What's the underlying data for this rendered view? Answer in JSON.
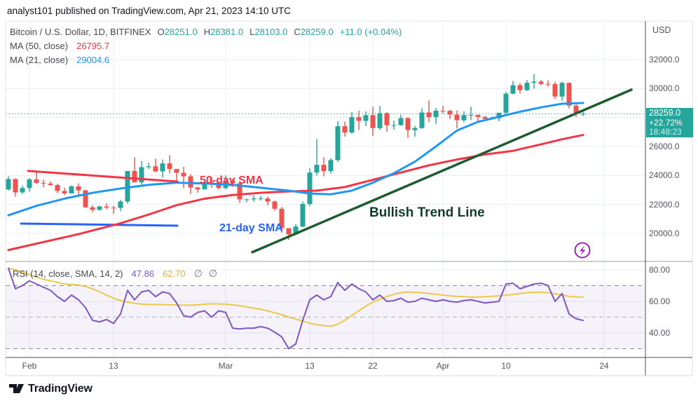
{
  "header": {
    "watermark": "analyst101 published on TradingView.com, Apr 21, 2023 14:10 UTC"
  },
  "legend": {
    "symbol": "Bitcoin / U.S. Dollar, 1D, BITFINEX",
    "ohlc": [
      {
        "label": "O",
        "value": "28251.0"
      },
      {
        "label": "H",
        "value": "28381.0"
      },
      {
        "label": "L",
        "value": "28103.0"
      },
      {
        "label": "C",
        "value": "28259.0"
      }
    ],
    "change": "+11.0 (+0.04%)",
    "ma50": {
      "label": "MA (50, close)",
      "value": "26795.7"
    },
    "ma21": {
      "label": "MA (21, close)",
      "value": "29004.6"
    }
  },
  "annotations": {
    "sma50": "50-day SMA",
    "sma21": "21-day SMA",
    "trend": "Bullish Trend Line"
  },
  "price_axis": {
    "unit": "USD",
    "ticks": [
      {
        "label": "32000.0",
        "value": 32000
      },
      {
        "label": "30000.0",
        "value": 30000
      },
      {
        "label": "26000.0",
        "value": 26000
      },
      {
        "label": "24000.0",
        "value": 24000
      },
      {
        "label": "22000.0",
        "value": 22000
      },
      {
        "label": "20000.0",
        "value": 20000
      }
    ],
    "badge": {
      "price": "28259.0",
      "change": "+22.72%",
      "countdown": "18:48:23"
    }
  },
  "time_axis": {
    "labels": [
      {
        "text": "Feb",
        "day": 3
      },
      {
        "text": "13",
        "day": 15
      },
      {
        "text": "Mar",
        "day": 31
      },
      {
        "text": "13",
        "day": 43
      },
      {
        "text": "22",
        "day": 52
      },
      {
        "text": "Apr",
        "day": 62
      },
      {
        "text": "10",
        "day": 71
      },
      {
        "text": "24",
        "day": 85
      }
    ]
  },
  "rsi_panel": {
    "legend": "RSI (14, close, SMA, 14, 2)",
    "value": "47.86",
    "sma_value": "62.70",
    "empty1": "∅",
    "empty2": "∅",
    "ticks": [
      {
        "label": "80.00",
        "value": 80
      },
      {
        "label": "60.00",
        "value": 60
      },
      {
        "label": "40.00",
        "value": 40
      }
    ]
  },
  "logo": {
    "text": "TradingView"
  },
  "colors": {
    "candle_up": "#26a69a",
    "candle_down": "#ef5350",
    "ma50": "#f23645",
    "ma21": "#2196f3",
    "support": "#2962ff",
    "resistance": "#f23645",
    "trend": "#1d5c2f",
    "rsi": "#7e57c2",
    "rsi_sma": "#ecc94a",
    "grid": "#e7ecf4",
    "badge_bg": "#26a69a",
    "flash": "#9c27b0"
  },
  "chart_data": {
    "type": "candlestick",
    "title": "Bitcoin / U.S. Dollar",
    "interval": "1D",
    "exchange": "BITFINEX",
    "start_date": "2023-01-29",
    "end_date": "2023-04-21",
    "current_price": 28259,
    "price_gridlines": [
      32000,
      30000,
      28000,
      26000,
      24000,
      22000,
      20000
    ],
    "candles": [
      [
        23030,
        23950,
        22960,
        23750
      ],
      [
        23750,
        23800,
        22530,
        22830
      ],
      [
        22830,
        23290,
        22720,
        23130
      ],
      [
        23130,
        23810,
        22880,
        23730
      ],
      [
        23730,
        24250,
        23430,
        23490
      ],
      [
        23490,
        23710,
        23180,
        23440
      ],
      [
        23440,
        23600,
        23290,
        23340
      ],
      [
        23340,
        23430,
        22770,
        22930
      ],
      [
        22930,
        23160,
        22630,
        22760
      ],
      [
        22760,
        23320,
        22760,
        23250
      ],
      [
        23250,
        23450,
        22670,
        22970
      ],
      [
        22970,
        23010,
        21750,
        21800
      ],
      [
        21800,
        21940,
        21450,
        21630
      ],
      [
        21630,
        21900,
        21570,
        21860
      ],
      [
        21860,
        22080,
        21660,
        21780
      ],
      [
        21780,
        21900,
        21350,
        21760
      ],
      [
        21760,
        22320,
        21530,
        22200
      ],
      [
        22200,
        24310,
        22060,
        24310
      ],
      [
        24310,
        25250,
        23560,
        23520
      ],
      [
        23520,
        24990,
        23370,
        24570
      ],
      [
        24570,
        24870,
        24450,
        24630
      ],
      [
        24630,
        25160,
        24220,
        24280
      ],
      [
        24280,
        25100,
        23850,
        24830
      ],
      [
        24830,
        25400,
        24150,
        24450
      ],
      [
        24450,
        24460,
        23580,
        24180
      ],
      [
        24180,
        24600,
        23120,
        23940
      ],
      [
        23940,
        24100,
        22720,
        23170
      ],
      [
        23170,
        23220,
        22800,
        23040
      ],
      [
        23040,
        23680,
        23030,
        23550
      ],
      [
        23550,
        23900,
        23150,
        23500
      ],
      [
        23500,
        23600,
        23020,
        23130
      ],
      [
        23130,
        24000,
        23020,
        23640
      ],
      [
        23640,
        23790,
        23190,
        23460
      ],
      [
        23460,
        23480,
        22100,
        22350
      ],
      [
        22350,
        22410,
        22150,
        22350
      ],
      [
        22350,
        22640,
        22190,
        22410
      ],
      [
        22410,
        22600,
        22260,
        22410
      ],
      [
        22410,
        22550,
        21930,
        22200
      ],
      [
        22200,
        22270,
        21560,
        21700
      ],
      [
        21700,
        21830,
        20050,
        20360
      ],
      [
        20360,
        20370,
        19550,
        19930
      ],
      [
        19930,
        20630,
        19880,
        20470
      ],
      [
        20470,
        22200,
        20430,
        22030
      ],
      [
        22030,
        24500,
        21880,
        24200
      ],
      [
        24200,
        26500,
        24000,
        24730
      ],
      [
        24730,
        25270,
        23940,
        24300
      ],
      [
        24300,
        25190,
        24130,
        25060
      ],
      [
        25060,
        27750,
        24930,
        27400
      ],
      [
        27400,
        27720,
        26680,
        26960
      ],
      [
        26960,
        28380,
        26880,
        28030
      ],
      [
        28030,
        28470,
        27140,
        27770
      ],
      [
        27770,
        28420,
        27400,
        28160
      ],
      [
        28160,
        28750,
        26720,
        27270
      ],
      [
        27270,
        28800,
        27130,
        28300
      ],
      [
        28300,
        28370,
        27020,
        27460
      ],
      [
        27460,
        27780,
        27160,
        27470
      ],
      [
        27470,
        28190,
        27430,
        27960
      ],
      [
        27960,
        28020,
        26590,
        27130
      ],
      [
        27130,
        27430,
        26670,
        27270
      ],
      [
        27270,
        28630,
        27230,
        28350
      ],
      [
        28350,
        29180,
        27680,
        28030
      ],
      [
        28030,
        28650,
        27560,
        28470
      ],
      [
        28470,
        28810,
        28280,
        28460
      ],
      [
        28460,
        28540,
        27880,
        28200
      ],
      [
        28200,
        28490,
        27250,
        27810
      ],
      [
        27810,
        28430,
        27670,
        28170
      ],
      [
        28170,
        28750,
        27820,
        28180
      ],
      [
        28180,
        28190,
        27740,
        28040
      ],
      [
        28040,
        28100,
        27780,
        27920
      ],
      [
        27920,
        28070,
        27850,
        27950
      ],
      [
        27950,
        28330,
        27740,
        28330
      ],
      [
        28330,
        29770,
        28180,
        29650
      ],
      [
        29650,
        30520,
        29600,
        30230
      ],
      [
        30230,
        30380,
        29660,
        29890
      ],
      [
        29890,
        30590,
        29830,
        30400
      ],
      [
        30400,
        31000,
        30000,
        30480
      ],
      [
        30480,
        30590,
        30220,
        30320
      ],
      [
        30320,
        30560,
        30140,
        30310
      ],
      [
        30310,
        30470,
        29270,
        29450
      ],
      [
        29450,
        30490,
        29150,
        30390
      ],
      [
        30390,
        30420,
        28620,
        28820
      ],
      [
        28820,
        29060,
        28040,
        28250
      ],
      [
        28251,
        28381,
        28103,
        28259
      ]
    ],
    "ma50": {
      "period": 50,
      "points": [
        [
          0,
          18850
        ],
        [
          5,
          19400
        ],
        [
          10,
          19950
        ],
        [
          16,
          20700
        ],
        [
          20,
          21300
        ],
        [
          24,
          21950
        ],
        [
          28,
          22400
        ],
        [
          32,
          22650
        ],
        [
          36,
          22800
        ],
        [
          40,
          22900
        ],
        [
          44,
          22950
        ],
        [
          48,
          23200
        ],
        [
          52,
          23700
        ],
        [
          56,
          24200
        ],
        [
          60,
          24700
        ],
        [
          64,
          25100
        ],
        [
          68,
          25450
        ],
        [
          72,
          25700
        ],
        [
          76,
          26150
        ],
        [
          79,
          26500
        ],
        [
          82,
          26796
        ]
      ]
    },
    "ma21": {
      "period": 21,
      "points": [
        [
          0,
          21250
        ],
        [
          4,
          21900
        ],
        [
          8,
          22400
        ],
        [
          12,
          22800
        ],
        [
          16,
          23100
        ],
        [
          20,
          23350
        ],
        [
          24,
          23500
        ],
        [
          28,
          23450
        ],
        [
          32,
          23350
        ],
        [
          36,
          23150
        ],
        [
          40,
          22950
        ],
        [
          43,
          22750
        ],
        [
          46,
          22700
        ],
        [
          49,
          22950
        ],
        [
          52,
          23500
        ],
        [
          55,
          24150
        ],
        [
          58,
          24950
        ],
        [
          61,
          26000
        ],
        [
          64,
          27100
        ],
        [
          67,
          27700
        ],
        [
          70,
          28050
        ],
        [
          73,
          28400
        ],
        [
          76,
          28700
        ],
        [
          79,
          28950
        ],
        [
          82,
          29005
        ]
      ]
    },
    "lines": {
      "resistance": {
        "from_day": 2.8,
        "from_price": 24310,
        "to_day": 24.1,
        "to_price": 23580
      },
      "support": {
        "from_day": 1.8,
        "from_price": 20680,
        "to_day": 24.1,
        "to_price": 20530
      },
      "bullish_trend": {
        "from_day": 34.8,
        "from_price": 18700,
        "to_day": 88.9,
        "to_price": 29920
      }
    },
    "rsi": {
      "band": [
        30,
        70
      ],
      "levels": [
        70,
        50,
        30
      ],
      "gridlines": [
        80,
        60,
        40
      ],
      "values": [
        81,
        68,
        70,
        73,
        71,
        69,
        67,
        63,
        60,
        64,
        61,
        56,
        48,
        47,
        48.5,
        46,
        52,
        67,
        61,
        66,
        67,
        63,
        66,
        65,
        59,
        51,
        50,
        53,
        54,
        50,
        54,
        53,
        43,
        42.5,
        43,
        43,
        44,
        43,
        40.5,
        37.5,
        30,
        33,
        48,
        61,
        64,
        61,
        63,
        72,
        67,
        71,
        68,
        66,
        61,
        64,
        60,
        60.5,
        62,
        59.5,
        60,
        62,
        61,
        60,
        61,
        60,
        59.5,
        60.5,
        61,
        60,
        59,
        59.5,
        60,
        71,
        71.5,
        68,
        69.5,
        71,
        71.5,
        70,
        60,
        65,
        52,
        49,
        47.9
      ],
      "sma_values": [
        81,
        80,
        78.5,
        77,
        75.5,
        74,
        73,
        72,
        71,
        70.8,
        70.4,
        69.5,
        68,
        66,
        64,
        62,
        60.5,
        59.5,
        58.8,
        58.3,
        58,
        58,
        58,
        57.8,
        57.7,
        57.6,
        57.6,
        57.8,
        58.2,
        58.5,
        58.4,
        58.2,
        57.8,
        57.2,
        56.5,
        55.8,
        55,
        54,
        52.8,
        51.5,
        50,
        48.8,
        47.5,
        46.2,
        45.2,
        44.6,
        44.2,
        45.5,
        48,
        51,
        54,
        57,
        59.5,
        61.5,
        63,
        64.5,
        65.5,
        66,
        65.8,
        65.5,
        65,
        64.5,
        64,
        63.5,
        63.2,
        63,
        62.7,
        62.7,
        63,
        63.2,
        63.5,
        64,
        64.4,
        65,
        65.5,
        65.8,
        65.8,
        65.5,
        64.8,
        64,
        63.2,
        62.8,
        62.7
      ]
    }
  }
}
